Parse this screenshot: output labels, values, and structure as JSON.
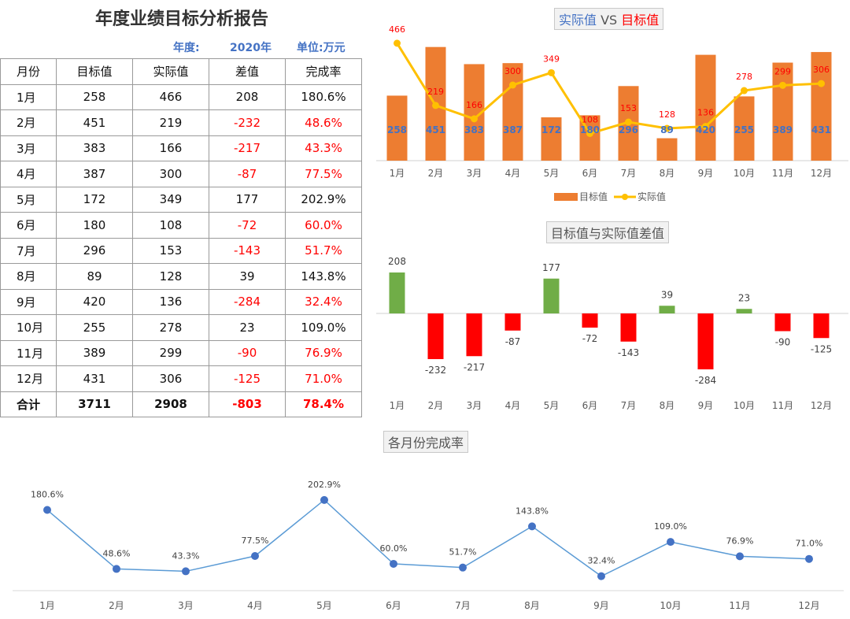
{
  "report": {
    "title": "年度业绩目标分析报告",
    "year_label": "年度:",
    "year_value": "2020年",
    "unit_label": "单位:万元"
  },
  "table": {
    "headers": [
      "月份",
      "目标值",
      "实际值",
      "差值",
      "完成率"
    ],
    "rows": [
      {
        "month": "1月",
        "target": "258",
        "actual": "466",
        "diff": "208",
        "rate": "180.6%",
        "bad": false
      },
      {
        "month": "2月",
        "target": "451",
        "actual": "219",
        "diff": "-232",
        "rate": "48.6%",
        "bad": true
      },
      {
        "month": "3月",
        "target": "383",
        "actual": "166",
        "diff": "-217",
        "rate": "43.3%",
        "bad": true
      },
      {
        "month": "4月",
        "target": "387",
        "actual": "300",
        "diff": "-87",
        "rate": "77.5%",
        "bad": true
      },
      {
        "month": "5月",
        "target": "172",
        "actual": "349",
        "diff": "177",
        "rate": "202.9%",
        "bad": false
      },
      {
        "month": "6月",
        "target": "180",
        "actual": "108",
        "diff": "-72",
        "rate": "60.0%",
        "bad": true
      },
      {
        "month": "7月",
        "target": "296",
        "actual": "153",
        "diff": "-143",
        "rate": "51.7%",
        "bad": true
      },
      {
        "month": "8月",
        "target": "89",
        "actual": "128",
        "diff": "39",
        "rate": "143.8%",
        "bad": false
      },
      {
        "month": "9月",
        "target": "420",
        "actual": "136",
        "diff": "-284",
        "rate": "32.4%",
        "bad": true
      },
      {
        "month": "10月",
        "target": "255",
        "actual": "278",
        "diff": "23",
        "rate": "109.0%",
        "bad": false
      },
      {
        "month": "11月",
        "target": "389",
        "actual": "299",
        "diff": "-90",
        "rate": "76.9%",
        "bad": true
      },
      {
        "month": "12月",
        "target": "431",
        "actual": "306",
        "diff": "-125",
        "rate": "71.0%",
        "bad": true
      }
    ],
    "total": {
      "month": "合计",
      "target": "3711",
      "actual": "2908",
      "diff": "-803",
      "rate": "78.4%"
    }
  },
  "colors": {
    "target_bar": "#ED7D31",
    "actual_line": "#FFC000",
    "actual_label": "#FF0000",
    "target_label": "#4472C4",
    "pos_bar": "#70AD47",
    "neg_bar": "#FF0000",
    "rate_line": "#5B9BD5",
    "rate_marker": "#4472C4"
  },
  "chart_data": [
    {
      "type": "bar",
      "title_part1": "实际值",
      "title_vs": " VS ",
      "title_part2": "目标值",
      "categories": [
        "1月",
        "2月",
        "3月",
        "4月",
        "5月",
        "6月",
        "7月",
        "8月",
        "9月",
        "10月",
        "11月",
        "12月"
      ],
      "series": [
        {
          "name": "目标值",
          "type": "bar",
          "values": [
            258,
            451,
            383,
            387,
            172,
            180,
            296,
            89,
            420,
            255,
            389,
            431
          ]
        },
        {
          "name": "实际值",
          "type": "line",
          "values": [
            466,
            219,
            166,
            300,
            349,
            108,
            153,
            128,
            136,
            278,
            299,
            306
          ]
        }
      ],
      "legend": "bottom",
      "grid": false
    },
    {
      "type": "bar",
      "title": "目标值与实际值差值",
      "categories": [
        "1月",
        "2月",
        "3月",
        "4月",
        "5月",
        "6月",
        "7月",
        "8月",
        "9月",
        "10月",
        "11月",
        "12月"
      ],
      "values": [
        208,
        -232,
        -217,
        -87,
        177,
        -72,
        -143,
        39,
        -284,
        23,
        -90,
        -125
      ],
      "grid": false
    },
    {
      "type": "line",
      "title": "各月份完成率",
      "categories": [
        "1月",
        "2月",
        "3月",
        "4月",
        "5月",
        "6月",
        "7月",
        "8月",
        "9月",
        "10月",
        "11月",
        "12月"
      ],
      "values": [
        180.6,
        48.6,
        43.3,
        77.5,
        202.9,
        60.0,
        51.7,
        143.8,
        32.4,
        109.0,
        76.9,
        71.0
      ],
      "value_labels": [
        "180.6%",
        "48.6%",
        "43.3%",
        "77.5%",
        "202.9%",
        "60.0%",
        "51.7%",
        "143.8%",
        "32.4%",
        "109.0%",
        "76.9%",
        "71.0%"
      ],
      "grid": false
    }
  ]
}
